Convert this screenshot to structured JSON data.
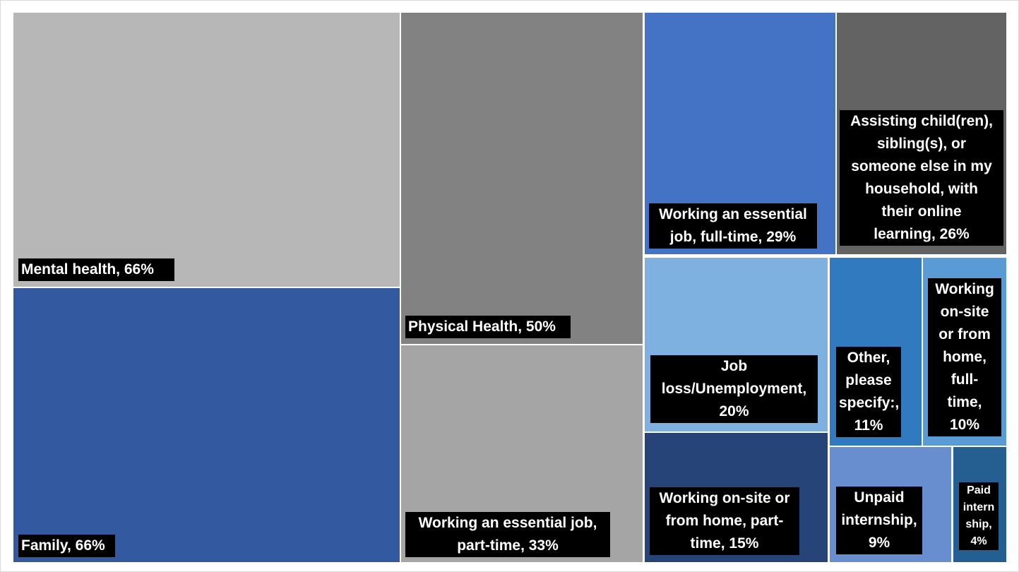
{
  "chart_data": {
    "type": "treemap",
    "title": "",
    "items": [
      {
        "name": "Mental health",
        "value": 66,
        "label": "Mental health, 66%",
        "color": "#b7b7b7"
      },
      {
        "name": "Family",
        "value": 66,
        "label": "Family, 66%",
        "color": "#335aa1"
      },
      {
        "name": "Physical Health",
        "value": 50,
        "label": "Physical Health, 50%",
        "color": "#828282"
      },
      {
        "name": "Working an essential job, part-time",
        "value": 33,
        "label": "Working an essential job, part-time, 33%",
        "color": "#a5a5a5"
      },
      {
        "name": "Working an essential job, full-time",
        "value": 29,
        "label": "Working an essential job, full-time, 29%",
        "color": "#4472c4"
      },
      {
        "name": "Assisting child(ren), sibling(s), or someone else in my household, with their online learning",
        "value": 26,
        "label": "Assisting child(ren), sibling(s), or someone else in my household, with their online learning, 26%",
        "color": "#636363"
      },
      {
        "name": "Job loss/Unemployment",
        "value": 20,
        "label": "Job loss/Unemployment, 20%",
        "color": "#7eb0e0"
      },
      {
        "name": "Other, please specify:",
        "value": 11,
        "label": "Other, please specify:, 11%",
        "color": "#317ac0"
      },
      {
        "name": "Working on-site or from home, full-time",
        "value": 10,
        "label": "Working on-site or from home, full-time, 10%",
        "color": "#5b9bd5"
      },
      {
        "name": "Working on-site or from home, part-time",
        "value": 15,
        "label": "Working on-site or from home, part-time, 15%",
        "color": "#264478"
      },
      {
        "name": "Unpaid internship",
        "value": 9,
        "label": "Unpaid internship, 9%",
        "color": "#698ed0"
      },
      {
        "name": "Paid internship",
        "value": 4,
        "label": "Paid internship, 4%",
        "color": "#255e91"
      }
    ]
  }
}
